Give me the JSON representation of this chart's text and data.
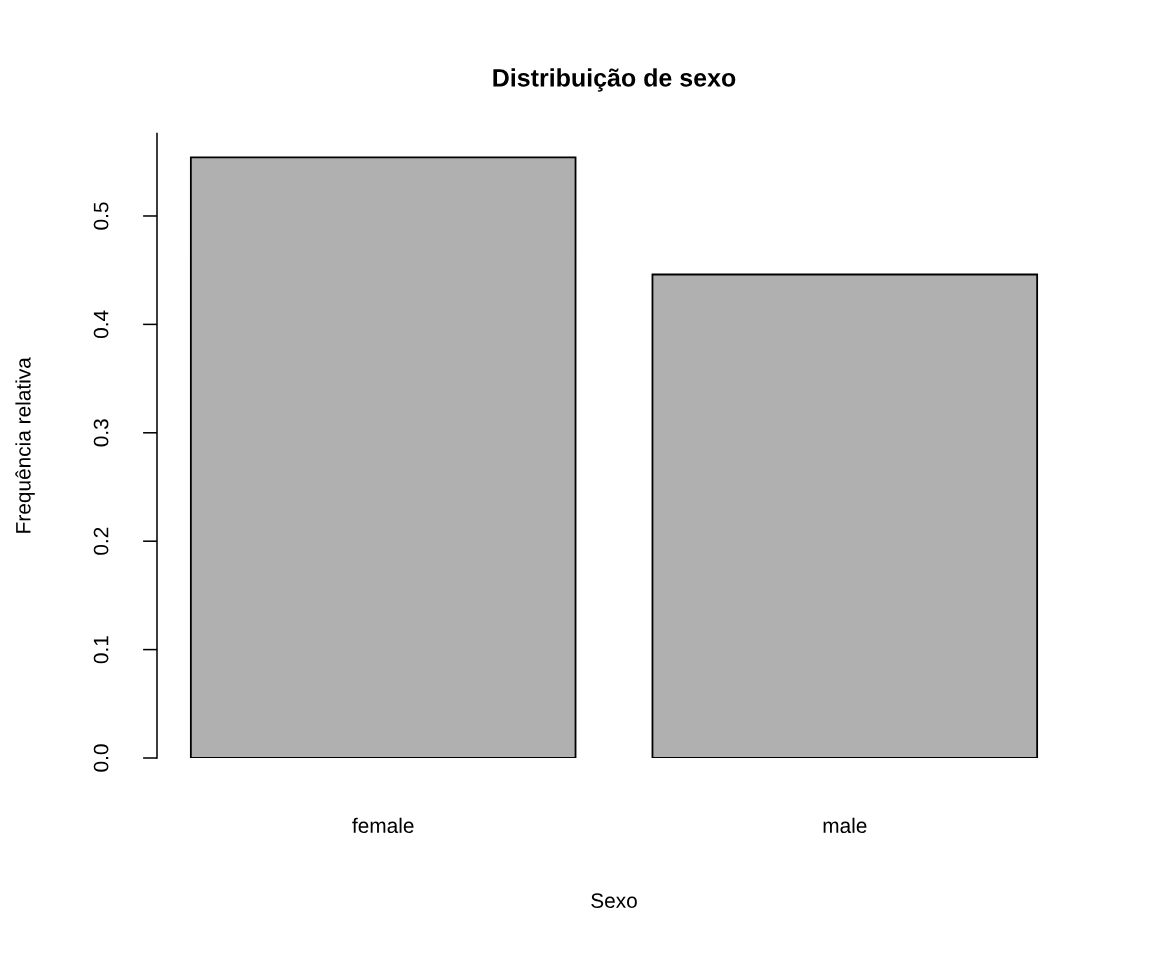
{
  "chart_data": {
    "type": "bar",
    "title": "Distribuição de sexo",
    "xlabel": "Sexo",
    "ylabel": "Frequência relativa",
    "categories": [
      "female",
      "male"
    ],
    "values": [
      0.554,
      0.446
    ],
    "color": "#b0b0b0",
    "ylim": [
      0,
      0.576
    ],
    "yticks": [
      {
        "value": 0,
        "label": "0.0"
      },
      0.1,
      0.2,
      0.3,
      0.4,
      0.5
    ],
    "grid": false,
    "legend": false
  }
}
